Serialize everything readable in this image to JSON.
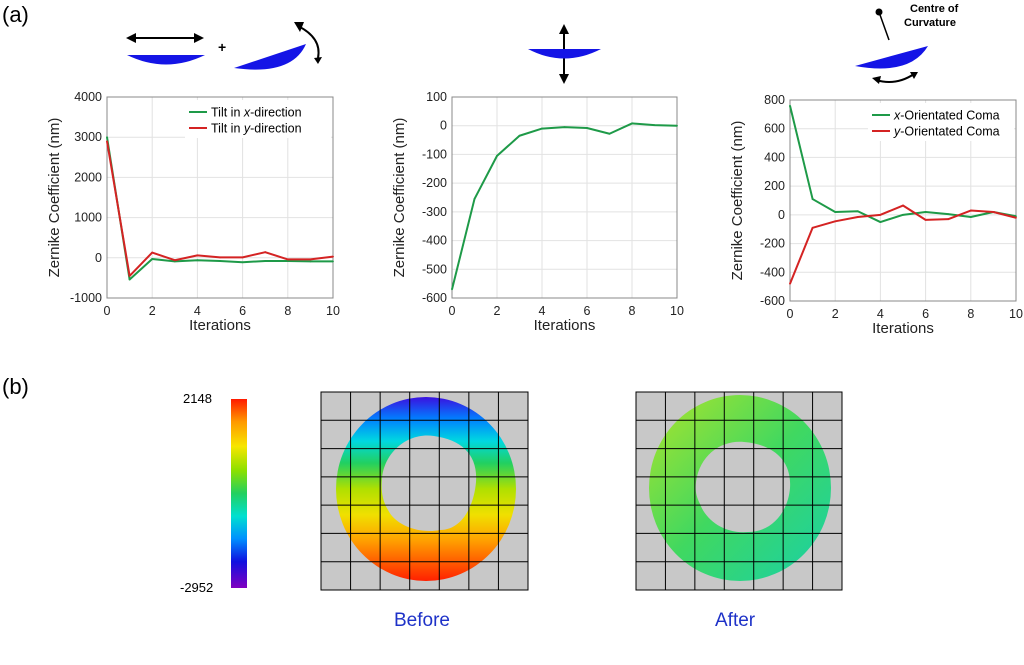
{
  "labels": {
    "a": "(a)",
    "b": "(b)"
  },
  "colors": {
    "green": "#1e9a48",
    "red": "#d42323",
    "mirror": "#1414e6"
  },
  "chart_data": [
    {
      "type": "line",
      "xlabel": "Iterations",
      "ylabel": "Zernike Coefficient (nm)",
      "xlim": [
        0,
        10
      ],
      "ylim": [
        -1000,
        4000
      ],
      "xticks": [
        "0",
        "2",
        "4",
        "6",
        "8",
        "10"
      ],
      "yticks": [
        "-1000",
        "0",
        "1000",
        "2000",
        "3000",
        "4000"
      ],
      "legend": "top-right",
      "x": [
        0,
        1,
        2,
        3,
        4,
        5,
        6,
        7,
        8,
        9,
        10
      ],
      "series": [
        {
          "name": "Tilt in x-direction",
          "legend_var": "x",
          "legend_rest": "-direction",
          "legend_prefix": "Tilt in ",
          "values": [
            3000,
            -540,
            -30,
            -90,
            -60,
            -80,
            -110,
            -80,
            -80,
            -90,
            -90
          ]
        },
        {
          "name": "Tilt in y-direction",
          "legend_var": "y",
          "legend_rest": "-direction",
          "legend_prefix": "Tilt in ",
          "values": [
            2900,
            -450,
            130,
            -60,
            60,
            10,
            10,
            140,
            -40,
            -40,
            30
          ]
        }
      ]
    },
    {
      "type": "line",
      "xlabel": "Iterations",
      "ylabel": "Zernike Coefficient (nm)",
      "xlim": [
        0,
        10
      ],
      "ylim": [
        -600,
        100
      ],
      "xticks": [
        "0",
        "2",
        "4",
        "6",
        "8",
        "10"
      ],
      "yticks": [
        "-600",
        "-500",
        "-400",
        "-300",
        "-200",
        "-100",
        "0",
        "100"
      ],
      "legend": "none",
      "x": [
        0,
        1,
        2,
        3,
        4,
        5,
        6,
        7,
        8,
        9,
        10
      ],
      "series": [
        {
          "values": [
            -570,
            -255,
            -105,
            -35,
            -10,
            -5,
            -8,
            -28,
            8,
            2,
            0
          ]
        }
      ]
    },
    {
      "type": "line",
      "xlabel": "Iterations",
      "ylabel": "Zernike Coefficient (nm)",
      "xlim": [
        0,
        10
      ],
      "ylim": [
        -600,
        800
      ],
      "xticks": [
        "0",
        "2",
        "4",
        "6",
        "8",
        "10"
      ],
      "yticks": [
        "-600",
        "-400",
        "-200",
        "0",
        "200",
        "400",
        "600",
        "800"
      ],
      "legend": "top-right",
      "x": [
        0,
        1,
        2,
        3,
        4,
        5,
        6,
        7,
        8,
        9,
        10
      ],
      "series": [
        {
          "name": "x-Orientated Coma",
          "legend_var": "x",
          "legend_rest": "-Orientated Coma",
          "legend_prefix": "",
          "values": [
            760,
            110,
            20,
            25,
            -50,
            0,
            20,
            5,
            -15,
            20,
            -10
          ]
        },
        {
          "name": "y-Orientated Coma",
          "legend_var": "y",
          "legend_rest": "-Orientated Coma",
          "legend_prefix": "",
          "values": [
            -480,
            -90,
            -45,
            -15,
            0,
            65,
            -35,
            -30,
            30,
            20,
            -20
          ]
        }
      ]
    }
  ],
  "colorbar": {
    "max": "2148",
    "min": "-2952"
  },
  "annotation": {
    "line1": "Centre of",
    "line2": "Curvature"
  },
  "captions": {
    "before": "Before",
    "after": "After"
  }
}
